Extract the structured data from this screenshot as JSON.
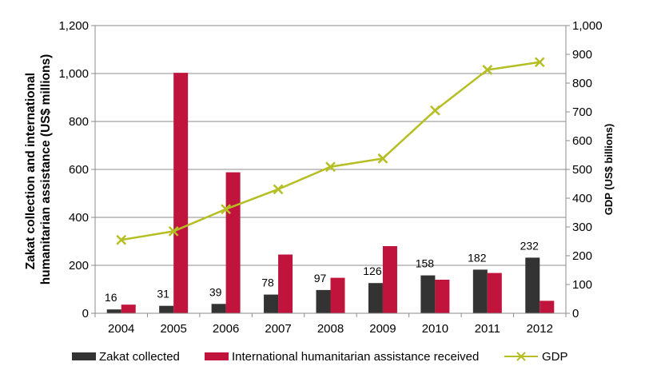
{
  "chart_data": {
    "type": "bar",
    "categories": [
      "2004",
      "2005",
      "2006",
      "2007",
      "2008",
      "2009",
      "2010",
      "2011",
      "2012"
    ],
    "series": [
      {
        "name": "Zakat collected",
        "kind": "bar",
        "axis": "left",
        "color": "#333333",
        "values": [
          16,
          31,
          39,
          78,
          97,
          126,
          158,
          182,
          232
        ],
        "data_labels": [
          "16",
          "31",
          "39",
          "78",
          "97",
          "126",
          "158",
          "182",
          "232"
        ]
      },
      {
        "name": "International humanitarian assistance received",
        "kind": "bar",
        "axis": "left",
        "color": "#c0143c",
        "values": [
          36,
          1003,
          588,
          245,
          148,
          280,
          140,
          168,
          52
        ]
      },
      {
        "name": "GDP",
        "kind": "line",
        "axis": "right",
        "color": "#b5be23",
        "values": [
          255,
          285,
          362,
          431,
          509,
          538,
          705,
          846,
          873
        ]
      }
    ],
    "ylabel": "Zakat collection and international humanitarian assistance (US$ millions)",
    "ylabel_lines": [
      "Zakat collection and international",
      "humanitarian assistance (US$ millions)"
    ],
    "y2label": "GDP (US$ billions)",
    "ylim": [
      0,
      1200
    ],
    "y2lim": [
      0,
      1000
    ],
    "yticks": [
      "0",
      "200",
      "400",
      "600",
      "800",
      "1,000",
      "1,200"
    ],
    "y2ticks": [
      "0",
      "100",
      "200",
      "300",
      "400",
      "500",
      "600",
      "700",
      "800",
      "900",
      "1,000"
    ],
    "grid": true,
    "legend_position": "bottom"
  }
}
